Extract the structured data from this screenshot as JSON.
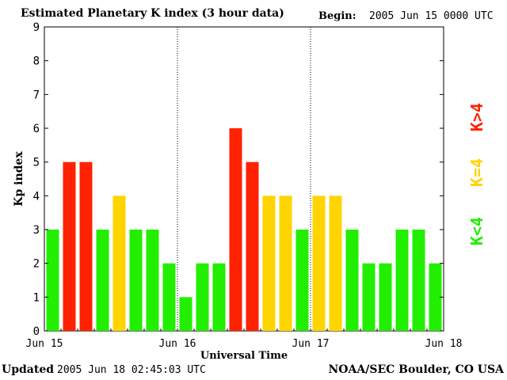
{
  "title": "Estimated Planetary K index (3 hour data)",
  "begin": {
    "label": "Begin:",
    "value": "2005 Jun 15 0000 UTC"
  },
  "footer": {
    "updated_label": "Updated",
    "updated_value": "2005 Jun 18 02:45:03 UTC",
    "credit": "NOAA/SEC Boulder, CO USA"
  },
  "colors": {
    "red": "#ff2200",
    "yellow": "#ffd400",
    "green": "#22ee00"
  },
  "legend": [
    {
      "label": "K<4",
      "color": "#22ee00"
    },
    {
      "label": "K=4",
      "color": "#ffd400"
    },
    {
      "label": "K>4",
      "color": "#ff2200"
    }
  ],
  "chart_data": {
    "type": "bar",
    "ylabel": "Kp index",
    "xlabel": "Universal Time",
    "ylim": [
      0,
      9
    ],
    "yticks": [
      "0",
      "1",
      "2",
      "3",
      "4",
      "5",
      "6",
      "7",
      "8",
      "9"
    ],
    "xtick_labels": [
      "Jun 15",
      "Jun 16",
      "Jun 17",
      "Jun 18"
    ],
    "day_dividers": true,
    "values": [
      3,
      5,
      5,
      3,
      4,
      3,
      3,
      2,
      1,
      2,
      2,
      6,
      5,
      4,
      4,
      3,
      4,
      4,
      3,
      2,
      2,
      3,
      3,
      2
    ]
  }
}
